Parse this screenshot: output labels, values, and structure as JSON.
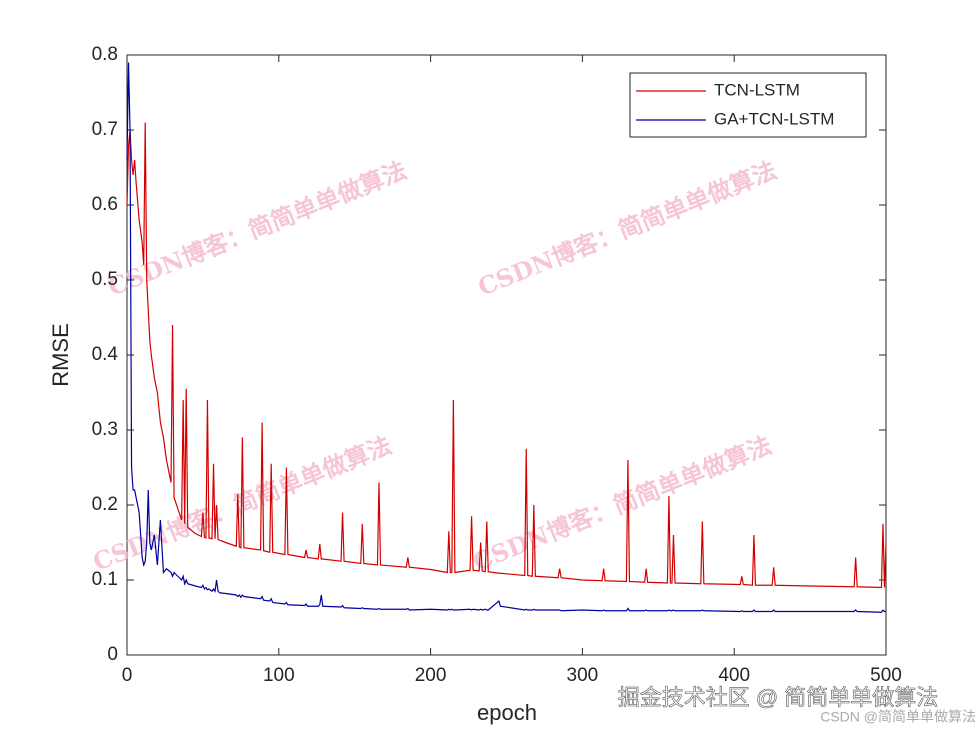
{
  "chart_data": {
    "type": "line",
    "x_label": "epoch",
    "y_label": "RMSE",
    "x": [
      0,
      1,
      2,
      3,
      4,
      5,
      6,
      8,
      10,
      11,
      12,
      13,
      14,
      15,
      16,
      18,
      20,
      22,
      24,
      26,
      29,
      30,
      31,
      36,
      37,
      38,
      39,
      40,
      45,
      49,
      50,
      51,
      52,
      53,
      54,
      56,
      57,
      58,
      59,
      60,
      61,
      65,
      72,
      73,
      74,
      75,
      76,
      77,
      88,
      89,
      90,
      94,
      95,
      96,
      104,
      105,
      106,
      117,
      118,
      119,
      126,
      127,
      128,
      129,
      141,
      142,
      143,
      154,
      155,
      156,
      165,
      166,
      167,
      184,
      185,
      186,
      200,
      211,
      212,
      213,
      214,
      215,
      216,
      226,
      227,
      228,
      232,
      233,
      234,
      236,
      237,
      238,
      245,
      246,
      262,
      263,
      264,
      267,
      268,
      269,
      284,
      285,
      286,
      300,
      313,
      314,
      315,
      329,
      330,
      331,
      341,
      342,
      343,
      356,
      357,
      358,
      359,
      360,
      361,
      378,
      379,
      380,
      404,
      405,
      406,
      412,
      413,
      414,
      425,
      426,
      427,
      450,
      479,
      480,
      481,
      497,
      498,
      499,
      500
    ],
    "series": [
      {
        "name": "TCN-LSTM",
        "color": "#d40000",
        "values": [
          0.6,
          0.68,
          0.7,
          0.66,
          0.64,
          0.66,
          0.63,
          0.58,
          0.55,
          0.52,
          0.71,
          0.5,
          0.46,
          0.42,
          0.4,
          0.37,
          0.35,
          0.31,
          0.29,
          0.26,
          0.23,
          0.44,
          0.21,
          0.18,
          0.34,
          0.175,
          0.355,
          0.17,
          0.162,
          0.158,
          0.19,
          0.157,
          0.156,
          0.34,
          0.156,
          0.155,
          0.255,
          0.155,
          0.2,
          0.154,
          0.153,
          0.15,
          0.145,
          0.215,
          0.144,
          0.143,
          0.29,
          0.143,
          0.14,
          0.31,
          0.139,
          0.137,
          0.255,
          0.137,
          0.134,
          0.25,
          0.134,
          0.13,
          0.14,
          0.13,
          0.128,
          0.148,
          0.128,
          0.128,
          0.125,
          0.19,
          0.125,
          0.122,
          0.175,
          0.122,
          0.12,
          0.23,
          0.12,
          0.117,
          0.13,
          0.117,
          0.114,
          0.11,
          0.165,
          0.11,
          0.11,
          0.34,
          0.11,
          0.113,
          0.185,
          0.113,
          0.112,
          0.15,
          0.112,
          0.111,
          0.178,
          0.111,
          0.109,
          0.109,
          0.106,
          0.275,
          0.106,
          0.105,
          0.2,
          0.105,
          0.103,
          0.115,
          0.103,
          0.1,
          0.099,
          0.115,
          0.099,
          0.098,
          0.26,
          0.098,
          0.097,
          0.115,
          0.097,
          0.096,
          0.212,
          0.096,
          0.096,
          0.16,
          0.096,
          0.095,
          0.178,
          0.095,
          0.094,
          0.105,
          0.094,
          0.093,
          0.16,
          0.093,
          0.093,
          0.117,
          0.093,
          0.092,
          0.091,
          0.13,
          0.091,
          0.09,
          0.175,
          0.09,
          0.15
        ]
      },
      {
        "name": "GA+TCN-LSTM",
        "color": "#0000a0",
        "values": [
          0.66,
          0.79,
          0.7,
          0.25,
          0.22,
          0.22,
          0.21,
          0.19,
          0.13,
          0.12,
          0.125,
          0.15,
          0.22,
          0.15,
          0.14,
          0.16,
          0.12,
          0.18,
          0.11,
          0.115,
          0.11,
          0.105,
          0.11,
          0.1,
          0.105,
          0.095,
          0.1,
          0.095,
          0.092,
          0.09,
          0.093,
          0.088,
          0.09,
          0.087,
          0.088,
          0.085,
          0.088,
          0.085,
          0.1,
          0.085,
          0.083,
          0.082,
          0.08,
          0.078,
          0.08,
          0.077,
          0.08,
          0.078,
          0.075,
          0.078,
          0.073,
          0.072,
          0.075,
          0.07,
          0.068,
          0.07,
          0.067,
          0.066,
          0.068,
          0.065,
          0.065,
          0.067,
          0.08,
          0.065,
          0.064,
          0.066,
          0.063,
          0.062,
          0.063,
          0.062,
          0.061,
          0.062,
          0.061,
          0.061,
          0.062,
          0.06,
          0.061,
          0.06,
          0.061,
          0.06,
          0.061,
          0.06,
          0.06,
          0.061,
          0.06,
          0.061,
          0.06,
          0.061,
          0.06,
          0.061,
          0.06,
          0.06,
          0.072,
          0.065,
          0.06,
          0.061,
          0.06,
          0.06,
          0.061,
          0.06,
          0.06,
          0.06,
          0.059,
          0.06,
          0.059,
          0.06,
          0.059,
          0.059,
          0.062,
          0.059,
          0.059,
          0.06,
          0.059,
          0.059,
          0.06,
          0.059,
          0.059,
          0.06,
          0.059,
          0.059,
          0.06,
          0.059,
          0.058,
          0.059,
          0.058,
          0.058,
          0.06,
          0.058,
          0.058,
          0.06,
          0.058,
          0.058,
          0.058,
          0.06,
          0.058,
          0.057,
          0.06,
          0.058,
          0.058
        ]
      }
    ],
    "xlim": [
      0,
      500
    ],
    "xticks": [
      0,
      100,
      200,
      300,
      400,
      500
    ],
    "ylim": [
      0,
      0.8
    ],
    "yticks": [
      0,
      0.1,
      0.2,
      0.3,
      0.4,
      0.5,
      0.6,
      0.7,
      0.8
    ],
    "legend": "upper right"
  },
  "watermarks": [
    "CSDN博客：简简单单做算法",
    "CSDN博客：简简单单做算法",
    "CSDN博客：简简单单做算法",
    "CSDN博客：简简单单做算法"
  ],
  "footer": {
    "primary": "掘金技术社区 @ 简简单单做算法",
    "secondary": "CSDN @简简单单做算法"
  }
}
